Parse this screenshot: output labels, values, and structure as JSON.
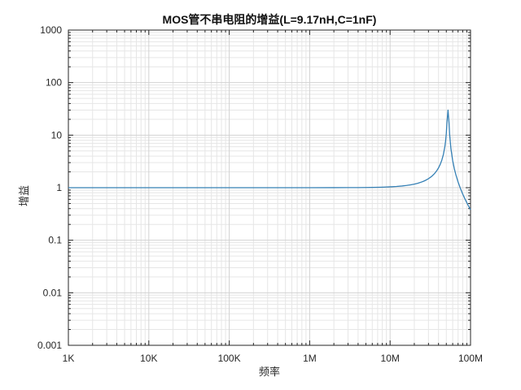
{
  "figure": {
    "background": "#ffffff",
    "border_color": "#262626",
    "major_grid_color": "#d2d2d2",
    "minor_grid_color": "#e6e6e6"
  },
  "chart_data": {
    "type": "line",
    "title": "MOS管不串电阻的增益(L=9.17nH,C=1nF)",
    "xlabel": "频率",
    "ylabel": "增益",
    "xscale": "log",
    "yscale": "log",
    "xlim": [
      1000,
      100000000
    ],
    "ylim": [
      0.001,
      1000
    ],
    "x_ticks": [
      1000,
      10000,
      100000,
      1000000,
      10000000,
      100000000
    ],
    "x_tick_labels": [
      "1K",
      "10K",
      "100K",
      "1M",
      "10M",
      "100M"
    ],
    "y_ticks": [
      1000,
      100,
      10,
      1,
      0.1,
      0.01,
      0.001
    ],
    "y_tick_labels": [
      "1000",
      "100",
      "10",
      "1",
      "0.1",
      "0.01",
      "0.001"
    ],
    "grid": "major+minor",
    "legend": "none",
    "line_color": "#3580b5",
    "line_width": 1.3,
    "series": [
      {
        "name": "gain",
        "x": [
          1000,
          3000,
          10000,
          30000,
          100000,
          300000,
          1000000,
          2000000,
          3000000,
          4000000,
          5000000,
          6000000,
          7000000,
          8000000,
          9000000,
          10000000,
          12000000,
          14000000,
          16000000,
          18000000,
          20000000,
          22000000,
          24000000,
          26000000,
          28000000,
          30000000,
          32000000,
          34000000,
          36000000,
          38000000,
          40000000,
          42000000,
          44000000,
          46000000,
          48000000,
          49000000,
          50000000,
          51000000,
          52500000,
          54000000,
          55000000,
          57000000,
          60000000,
          63000000,
          66000000,
          70000000,
          75000000,
          80000000,
          85000000,
          90000000,
          95000000,
          100000000
        ],
        "y": [
          1.0,
          1.0,
          1.0,
          1.0,
          1.0,
          1.0,
          1.0004,
          1.0015,
          1.0033,
          1.0058,
          1.0092,
          1.0132,
          1.0181,
          1.0238,
          1.0303,
          1.0377,
          1.0551,
          1.0766,
          1.1024,
          1.1332,
          1.1697,
          1.213,
          1.2642,
          1.325,
          1.3975,
          1.4848,
          1.5911,
          1.7223,
          1.8875,
          2.1004,
          2.3838,
          2.7778,
          3.3596,
          4.3029,
          6.0939,
          7.7519,
          10.753,
          17.762,
          30.0,
          17.241,
          10.256,
          5.5928,
          3.2671,
          2.2727,
          1.7227,
          1.2857,
          0.9608,
          0.7564,
          0.6168,
          0.5158,
          0.4397,
          0.3804
        ]
      }
    ]
  }
}
